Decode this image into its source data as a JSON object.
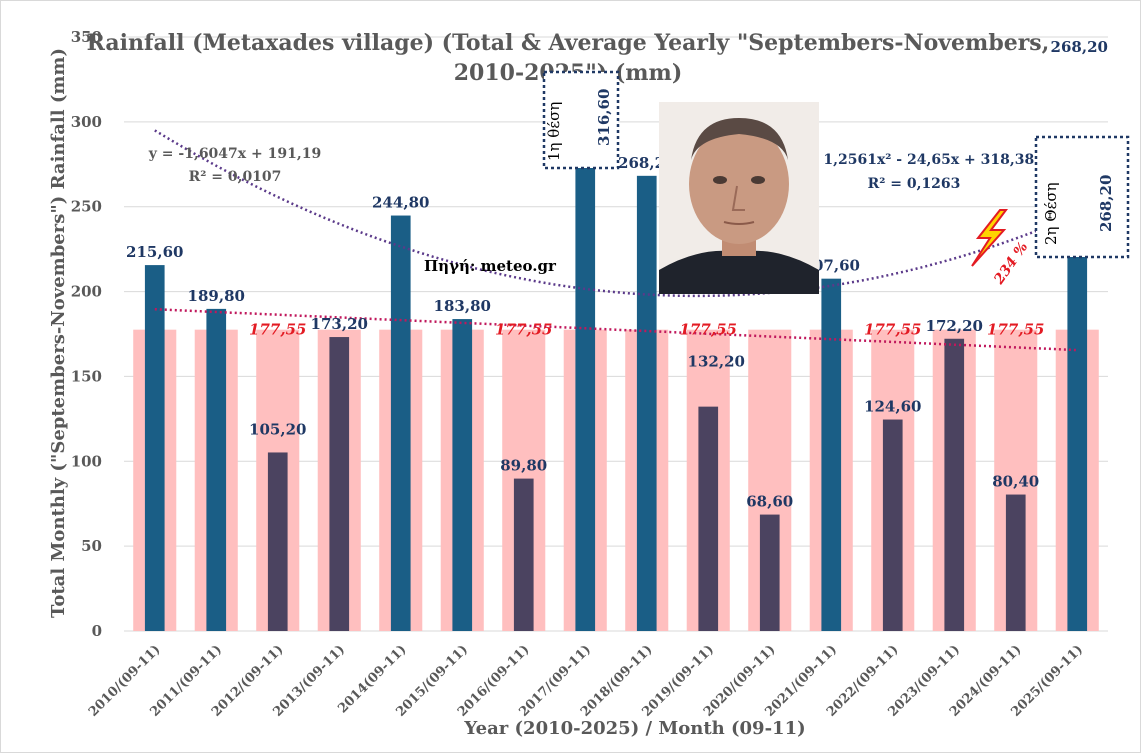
{
  "chart_data": {
    "type": "bar",
    "title_line1": "Rainfall (Metaxades village) (Total & Average Yearly \"Septembers-Novembers,",
    "title_line2": "2010-2025\") (mm)",
    "xlabel": "Year (2010-2025) / Month (09-11)",
    "ylabel": "Total Monthly (\"Septembers-Novembers\") Rainfall (mm)",
    "ylim": [
      0,
      350
    ],
    "yticks": [
      0,
      50,
      100,
      150,
      200,
      250,
      300,
      350
    ],
    "grid": true,
    "categories": [
      "2010/(09-11)",
      "2011/(09-11)",
      "2012/(09-11)",
      "2013/(09-11)",
      "2014(09-11)",
      "2015/(09-11)",
      "2016/(09-11)",
      "2017/(09-11)",
      "2018/(09-11)",
      "2019/(09-11)",
      "2020/(09-11)",
      "2021/(09-11)",
      "2022/(09-11)",
      "2023/(09-11)",
      "2024/(09-11)",
      "2025/(09-11)"
    ],
    "series": [
      {
        "values": [
          215.6,
          189.8,
          105.2,
          173.2,
          244.8,
          183.8,
          89.8,
          316.6,
          268.2,
          132.2,
          68.6,
          207.6,
          124.6,
          172.2,
          80.4,
          268.2
        ],
        "labels": [
          "215,60",
          "189,80",
          "105,20",
          "173,20",
          "244,80",
          "183,80",
          "89,80",
          "316,60",
          "268,20",
          "132,20",
          "68,60",
          "207,60",
          "124,60",
          "172,20",
          "80,40",
          "268,20"
        ],
        "color_above_avg": "#1a5e86",
        "color_below_avg": "#4b4360"
      },
      {
        "values": [
          177.55,
          177.55,
          177.55,
          177.55,
          177.55,
          177.55,
          177.55,
          177.55,
          177.55,
          177.55,
          177.55,
          177.55,
          177.55,
          177.55,
          177.55,
          177.55
        ],
        "label": "177,55",
        "label_indices": [
          2,
          6,
          9,
          12,
          14
        ],
        "color": "#ffbfbf"
      }
    ],
    "trendlines": [
      {
        "kind": "linear",
        "equation": "y = -1,6047x + 191,19",
        "r2": "R² = 0,0107",
        "a": 0,
        "b": -1.6047,
        "c": 191.19,
        "color": "#c0185c"
      },
      {
        "kind": "polynomial",
        "equation": "y = 1,2561x² - 24,65x + 318,38",
        "r2": "R² = 0,1263",
        "a": 1.2561,
        "b": -24.65,
        "c": 318.38,
        "color": "#5b3a8a"
      }
    ],
    "annotations": {
      "source": "Πηγή: meteo.gr",
      "rank1": "1η θέση",
      "rank1_value": "316,60",
      "rank2": "2η Θέση",
      "rank2_value": "268,20",
      "percent": "234 %"
    }
  },
  "colors": {
    "above_avg_bar": "#1a5e86",
    "below_avg_bar": "#4b4360",
    "average_bar": "#ffbfbf",
    "avg_label": "#e31b23",
    "grid": "#d9d9d9"
  }
}
